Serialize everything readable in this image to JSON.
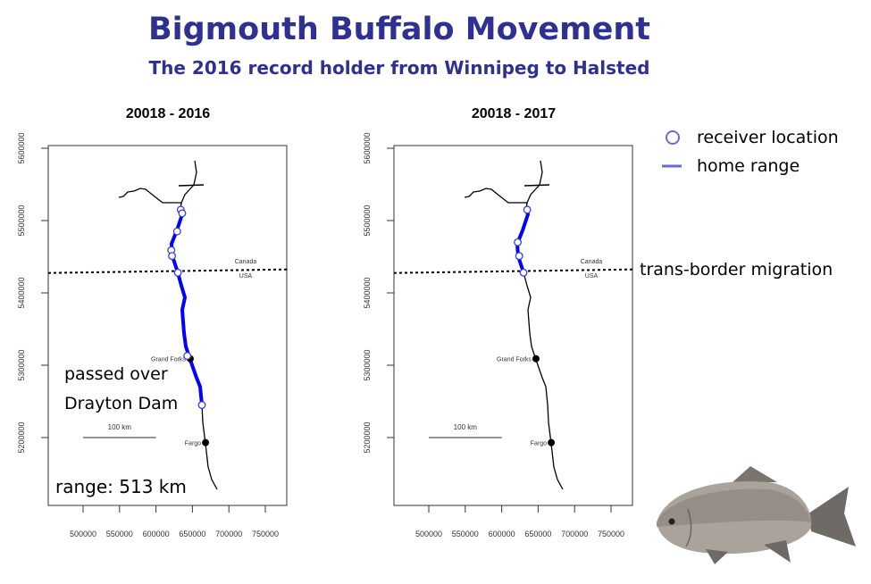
{
  "title": "Bigmouth Buffalo Movement",
  "subtitle": "The 2016 record holder from Winnipeg to Halsted",
  "legend": {
    "receiver_label": "receiver location",
    "home_range_label": "home range",
    "receiver_color": "#4a4ae0",
    "home_range_color": "#6a6ad8"
  },
  "trans_border_label": "trans-border migration",
  "colors": {
    "title": "#2e3192",
    "track": "#0000ff",
    "river": "#000000"
  },
  "chart_data": [
    {
      "type": "scatter",
      "title": "20018 - 2016",
      "x_ticks": [
        "500000",
        "550000",
        "600000",
        "650000",
        "700000",
        "750000"
      ],
      "y_ticks": [
        "5600000",
        "5500000",
        "5400000",
        "5300000",
        "5200000"
      ],
      "xlim": [
        452000,
        780000
      ],
      "ylim": [
        5104000,
        5604000
      ],
      "receivers": [
        {
          "x": 634000,
          "y": 5515000
        },
        {
          "x": 636000,
          "y": 5510000
        },
        {
          "x": 629000,
          "y": 5485000
        },
        {
          "x": 621000,
          "y": 5459000
        },
        {
          "x": 622000,
          "y": 5451000
        },
        {
          "x": 630000,
          "y": 5428000
        },
        {
          "x": 643000,
          "y": 5313000
        },
        {
          "x": 663000,
          "y": 5245000
        }
      ],
      "home_range_y": [
        5245000,
        5515000
      ],
      "cities": [
        {
          "name": "Grand Forks",
          "x": 647000,
          "y": 5309000
        },
        {
          "name": "Fargo",
          "x": 668000,
          "y": 5193000
        }
      ],
      "border_y": 5430000,
      "border_labels": {
        "north": "Canada",
        "south": "USA"
      },
      "scale_bar_label": "100 km",
      "annotations": {
        "line1": "passed over",
        "line2": "Drayton Dam",
        "range": "range: 513 km"
      }
    },
    {
      "type": "scatter",
      "title": "20018 - 2017",
      "x_ticks": [
        "500000",
        "550000",
        "600000",
        "650000",
        "700000",
        "750000"
      ],
      "y_ticks": [
        "5600000",
        "5500000",
        "5400000",
        "5300000",
        "5200000"
      ],
      "xlim": [
        452000,
        780000
      ],
      "ylim": [
        5104000,
        5604000
      ],
      "receivers": [
        {
          "x": 635000,
          "y": 5515000
        },
        {
          "x": 622000,
          "y": 5470000
        },
        {
          "x": 624000,
          "y": 5451000
        },
        {
          "x": 630000,
          "y": 5428000
        }
      ],
      "home_range_y": [
        5428000,
        5515000
      ],
      "cities": [
        {
          "name": "Grand Forks",
          "x": 647000,
          "y": 5309000
        },
        {
          "name": "Fargo",
          "x": 668000,
          "y": 5193000
        }
      ],
      "border_y": 5430000,
      "border_labels": {
        "north": "Canada",
        "south": "USA"
      },
      "scale_bar_label": "100 km"
    }
  ]
}
